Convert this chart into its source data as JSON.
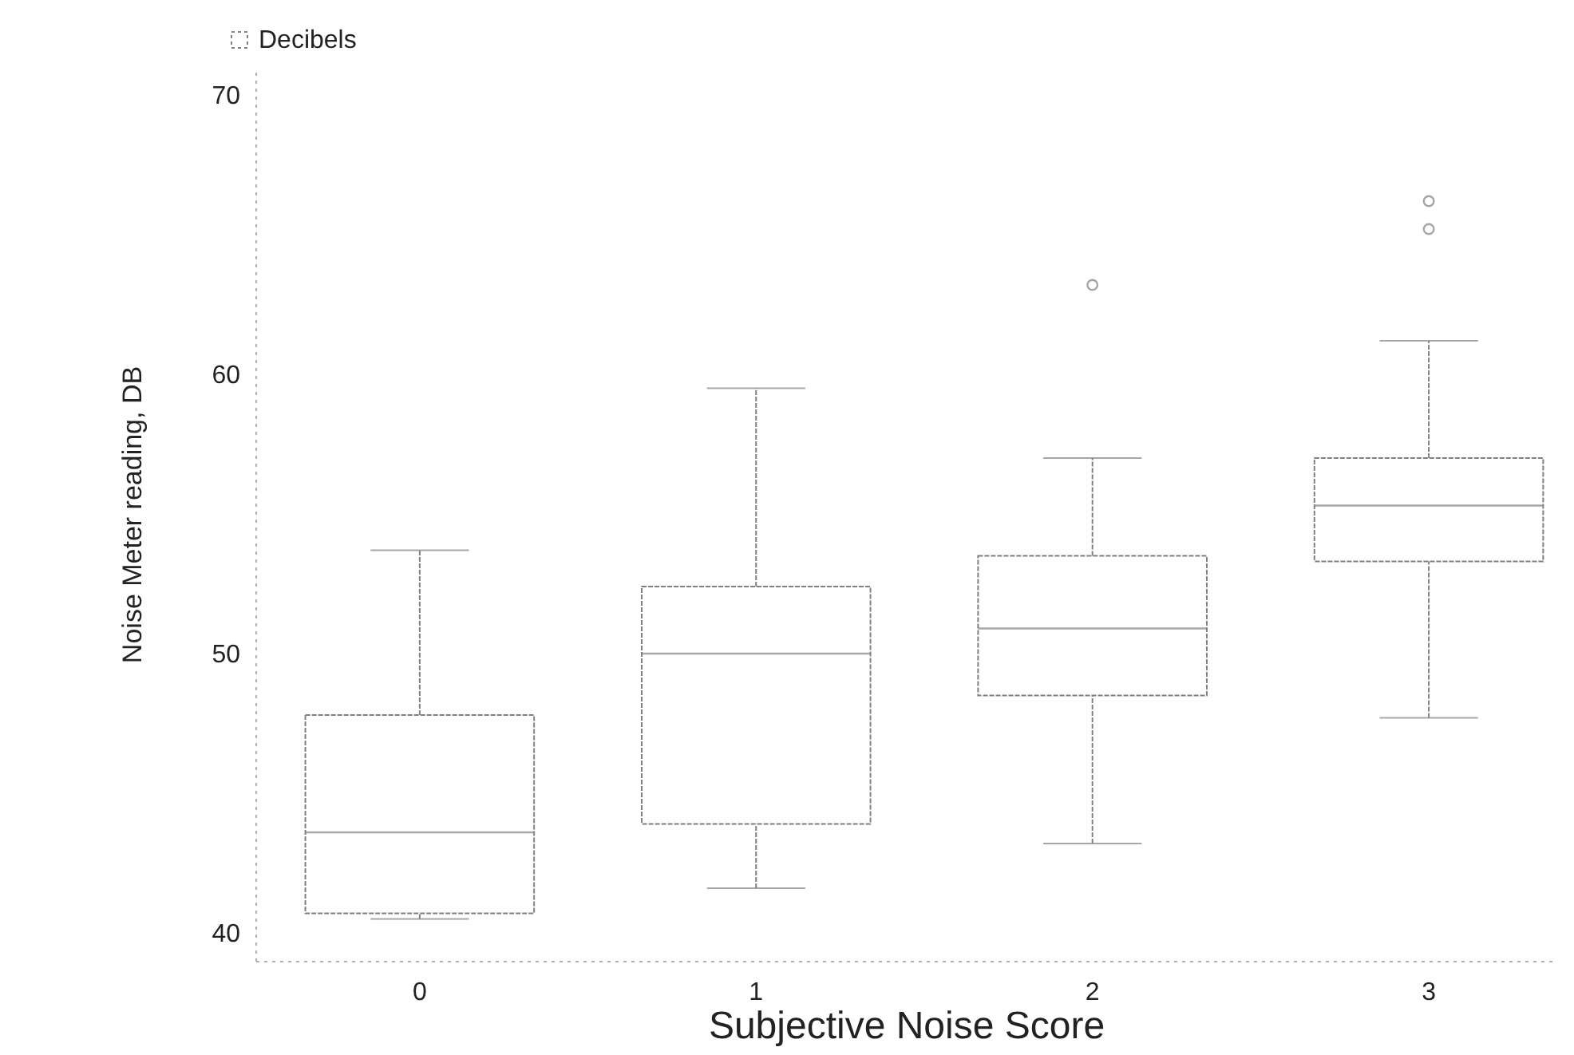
{
  "chart_data": {
    "type": "box",
    "xlabel": "Subjective Noise Score",
    "ylabel": "Noise Meter reading, DB",
    "categories": [
      "0",
      "1",
      "2",
      "3"
    ],
    "series": [
      {
        "name": "Decibels",
        "color": "#808080",
        "boxes": [
          {
            "low": 40.5,
            "q1": 40.7,
            "median": 43.6,
            "q3": 47.8,
            "high": 53.7
          },
          {
            "low": 41.6,
            "q1": 43.9,
            "median": 50.0,
            "q3": 52.4,
            "high": 59.5
          },
          {
            "low": 43.2,
            "q1": 48.5,
            "median": 50.9,
            "q3": 53.5,
            "high": 57.0,
            "outliers": [
              63.2
            ]
          },
          {
            "low": 47.7,
            "q1": 53.3,
            "median": 55.3,
            "q3": 57.0,
            "high": 61.2,
            "outliers": [
              66.2,
              65.2
            ]
          }
        ]
      }
    ],
    "ylim": [
      39,
      71
    ],
    "yticks": [
      40,
      50,
      60,
      70
    ],
    "legend": "top left"
  }
}
